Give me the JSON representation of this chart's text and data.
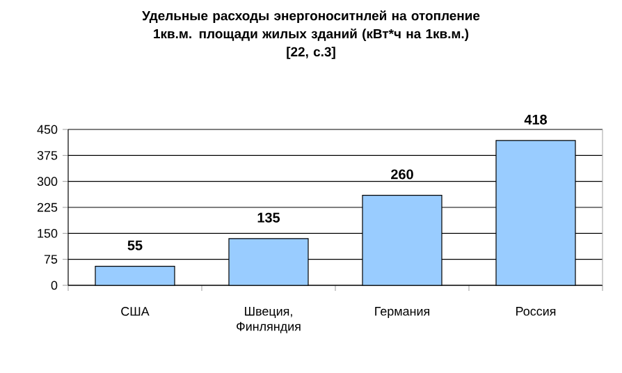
{
  "chart_data": {
    "type": "bar",
    "title": "Удельные расходы энергоноситнлей на отопление 1кв.м. площади жилых зданий  (кВт*ч на 1кв.м.)",
    "subtitle": "[22, с.3]",
    "categories": [
      "США",
      "Швеция, Финляндия",
      "Германия",
      "Россия"
    ],
    "values": [
      55,
      135,
      260,
      418
    ],
    "color": "#99ccff",
    "ylim": [
      0,
      450
    ],
    "yticks": [
      0,
      75,
      150,
      225,
      300,
      375,
      450
    ],
    "grid": "y",
    "data_labels": true
  }
}
